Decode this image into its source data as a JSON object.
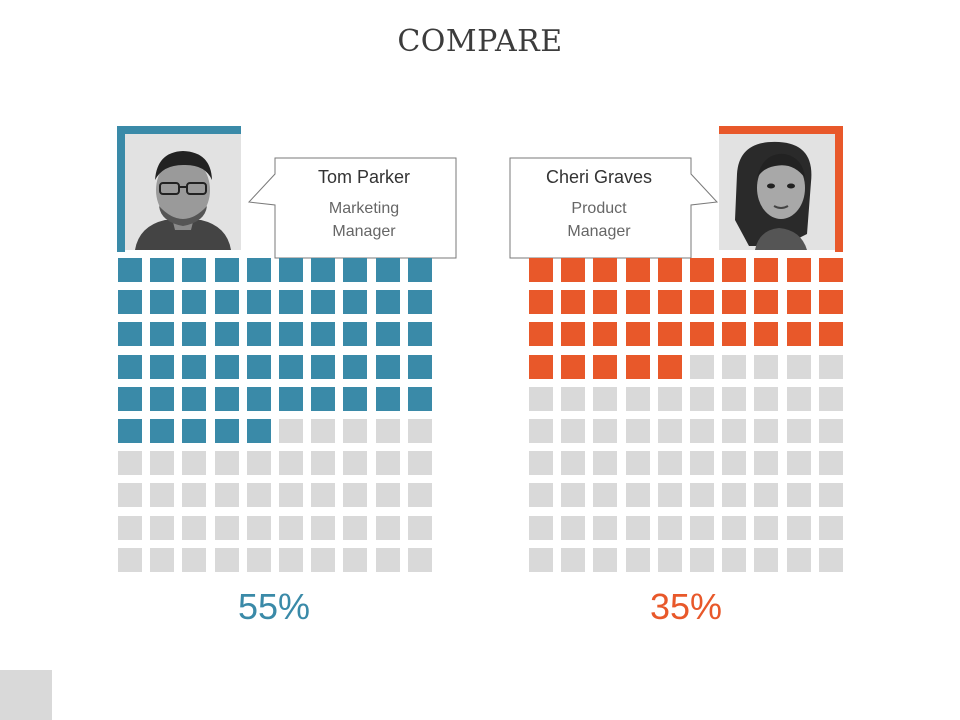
{
  "title": "COMPARE",
  "colors": {
    "blue": "#3a8aa8",
    "orange": "#e8582a",
    "empty": "#d9d9d9"
  },
  "chart_data": [
    {
      "type": "waffle",
      "person": {
        "name": "Tom Parker",
        "role": "Marketing Manager",
        "photo": "male-portrait"
      },
      "value": 55,
      "label": "55%",
      "grid": [
        10,
        10
      ],
      "color": "#3a8aa8"
    },
    {
      "type": "waffle",
      "person": {
        "name": "Cheri Graves",
        "role": "Product Manager",
        "photo": "female-portrait"
      },
      "value": 35,
      "label": "35%",
      "grid": [
        10,
        10
      ],
      "color": "#e8582a"
    }
  ]
}
